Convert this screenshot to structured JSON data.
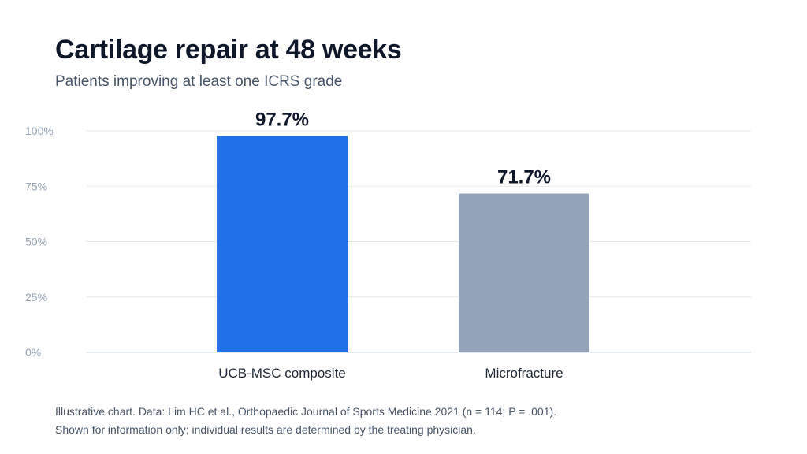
{
  "header": {
    "title": "Cartilage repair at 48 weeks",
    "subtitle": "Patients improving at least one ICRS grade"
  },
  "footnotes": [
    "Illustrative chart. Data: Lim HC et al., Orthopaedic Journal of Sports Medicine 2021 (n = 114; P = .001).",
    "Shown for information only; individual results are determined by the treating physician."
  ],
  "chart_data": {
    "type": "bar",
    "title": "Cartilage repair at 48 weeks",
    "subtitle": "Patients improving at least one ICRS grade",
    "categories": [
      "UCB-MSC composite",
      "Microfracture"
    ],
    "values": [
      97.7,
      71.7
    ],
    "value_labels": [
      "97.7%",
      "71.7%"
    ],
    "bar_colors": [
      "#2170e8",
      "#94a3b8"
    ],
    "ylim": [
      0,
      100
    ],
    "yticks": [
      0,
      25,
      50,
      75,
      100
    ],
    "ytick_labels": [
      "0%",
      "25%",
      "50%",
      "75%",
      "100%"
    ],
    "grid": true,
    "xlabel": "",
    "ylabel": ""
  }
}
